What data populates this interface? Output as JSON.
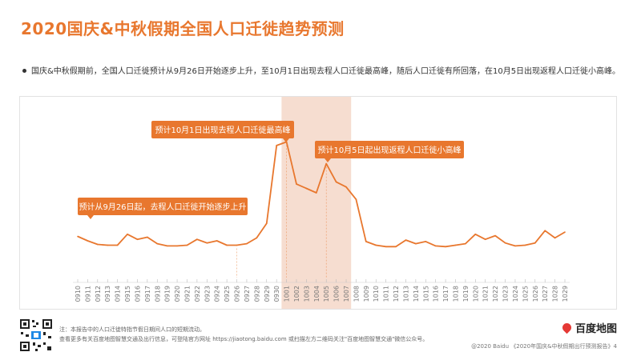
{
  "header": {
    "title": "2020国庆&中秋假期全国人口迁徙趋势预测",
    "bullet": "国庆&中秋假期前，全国人口迁徙预计从9月26日开始逐步上升，至10月1日出现去程人口迁徙最高峰，随后人口迁徙有所回落，在10月5日出现返程人口迁徙小高峰。"
  },
  "chart_data": {
    "type": "line",
    "x": [
      "0910",
      "0911",
      "0912",
      "0913",
      "0914",
      "0915",
      "0916",
      "0917",
      "0918",
      "0919",
      "0920",
      "0921",
      "0922",
      "0923",
      "0924",
      "0925",
      "0926",
      "0927",
      "0928",
      "0929",
      "0930",
      "1001",
      "1002",
      "1003",
      "1004",
      "1005",
      "1006",
      "1007",
      "1008",
      "1009",
      "1010",
      "1011",
      "1012",
      "1013",
      "1014",
      "1015",
      "1016",
      "1017",
      "1018",
      "1019",
      "1020",
      "1021",
      "1022",
      "1023",
      "1024",
      "1025",
      "1026",
      "1027",
      "1028",
      "1029"
    ],
    "values": [
      50,
      44,
      39,
      38,
      38,
      53,
      46,
      49,
      40,
      37,
      37,
      38,
      46,
      41,
      44,
      38,
      38,
      40,
      48,
      68,
      175,
      180,
      122,
      116,
      110,
      150,
      125,
      118,
      101,
      43,
      38,
      36,
      36,
      45,
      40,
      43,
      37,
      36,
      38,
      40,
      53,
      46,
      51,
      41,
      37,
      38,
      41,
      58,
      48,
      56
    ],
    "ylim": [
      0,
      220
    ],
    "grid": false,
    "highlight_range": [
      "1001",
      "1007"
    ],
    "annotations": [
      {
        "label": "预计从9月26日起，去程人口迁徙开始逐步上升",
        "at": "0926"
      },
      {
        "label": "预计10月1日出现去程人口迁徙最高峰",
        "at": "1001"
      },
      {
        "label": "预计10月5日起出现返程人口迁徙小高峰",
        "at": "1005"
      }
    ],
    "colors": {
      "line": "#e8772e",
      "highlight": "#f6ddd0",
      "callout": "#e8772e"
    }
  },
  "footer": {
    "note_1": "注：本报告中的人口迁徙特指节假日期间人口的短期流动。",
    "note_2": "查看更多有关百度地图智慧交通及出行信息，可登陆官方网址 https://jiaotong.baidu.com 或扫描左方二维码关注\"百度地图智慧交通\"微信公众号。",
    "brand": "百度地图",
    "copyright": "@2020 Baidu 《2020年国庆&中秋假期出行预测报告》4"
  }
}
